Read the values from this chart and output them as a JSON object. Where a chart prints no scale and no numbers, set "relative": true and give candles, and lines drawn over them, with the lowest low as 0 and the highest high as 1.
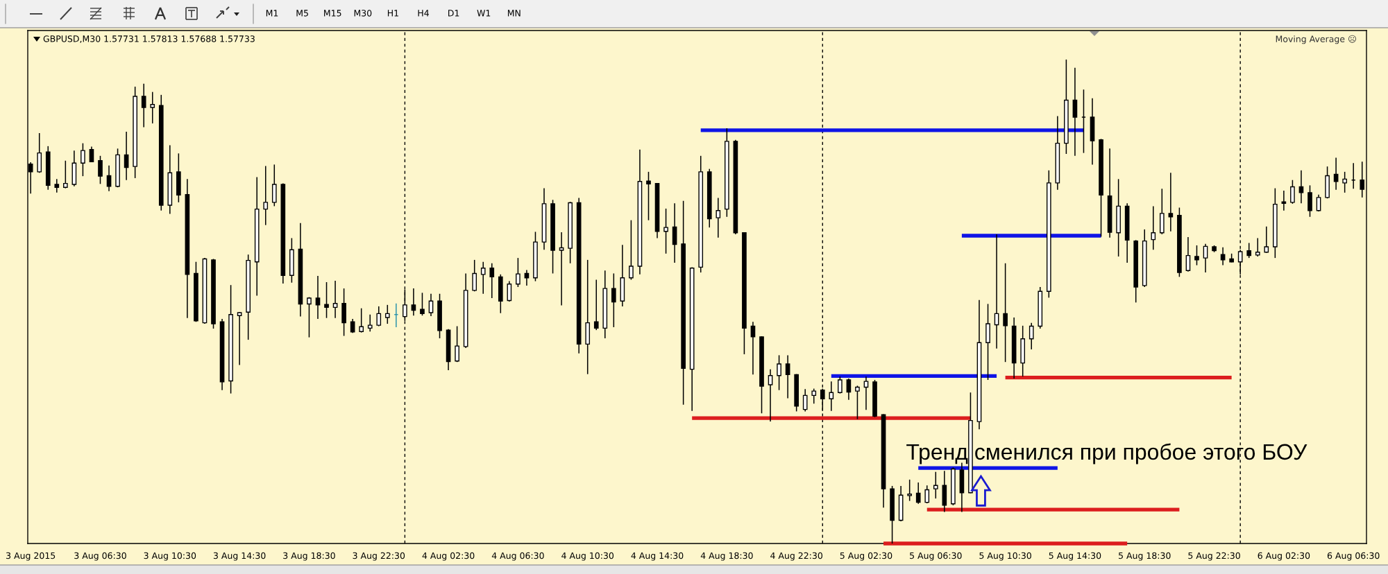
{
  "chart_data": {
    "type": "candlestick",
    "title": "GBPUSD,M30 1.57731 1.57813 1.57688 1.57733",
    "relative": true,
    "x": [
      "2015-08-03T02:30",
      "2015-08-03T03:00",
      "2015-08-03T03:30",
      "2015-08-03T04:00",
      "2015-08-03T04:30",
      "2015-08-03T05:00",
      "2015-08-03T05:30",
      "2015-08-03T06:00",
      "2015-08-03T06:30",
      "2015-08-03T07:00",
      "2015-08-03T07:30",
      "2015-08-03T08:00",
      "2015-08-03T08:30",
      "2015-08-03T09:00",
      "2015-08-03T09:30",
      "2015-08-03T10:00",
      "2015-08-03T10:30",
      "2015-08-03T11:00",
      "2015-08-03T11:30",
      "2015-08-03T12:00",
      "2015-08-03T12:30",
      "2015-08-03T13:00",
      "2015-08-03T13:30",
      "2015-08-03T14:00",
      "2015-08-03T14:30",
      "2015-08-03T15:00",
      "2015-08-03T15:30",
      "2015-08-03T16:00",
      "2015-08-03T16:30",
      "2015-08-03T17:00",
      "2015-08-03T17:30",
      "2015-08-03T18:00",
      "2015-08-03T18:30",
      "2015-08-03T19:00",
      "2015-08-03T19:30",
      "2015-08-03T20:00",
      "2015-08-03T20:30",
      "2015-08-03T21:00",
      "2015-08-03T21:30",
      "2015-08-03T22:00",
      "2015-08-03T22:30",
      "2015-08-03T23:00",
      "2015-08-03T23:30",
      "2015-08-04T00:00",
      "2015-08-04T00:30",
      "2015-08-04T01:00",
      "2015-08-04T01:30",
      "2015-08-04T02:00",
      "2015-08-04T02:30",
      "2015-08-04T03:00",
      "2015-08-04T03:30",
      "2015-08-04T04:00",
      "2015-08-04T04:30",
      "2015-08-04T05:00",
      "2015-08-04T05:30",
      "2015-08-04T06:00",
      "2015-08-04T06:30",
      "2015-08-04T07:00",
      "2015-08-04T07:30",
      "2015-08-04T08:00",
      "2015-08-04T08:30",
      "2015-08-04T09:00",
      "2015-08-04T09:30",
      "2015-08-04T10:00",
      "2015-08-04T10:30",
      "2015-08-04T11:00",
      "2015-08-04T11:30",
      "2015-08-04T12:00",
      "2015-08-04T12:30",
      "2015-08-04T13:00",
      "2015-08-04T13:30",
      "2015-08-04T14:00",
      "2015-08-04T14:30",
      "2015-08-04T15:00",
      "2015-08-04T15:30",
      "2015-08-04T16:00",
      "2015-08-04T16:30",
      "2015-08-04T17:00",
      "2015-08-04T17:30",
      "2015-08-04T18:00",
      "2015-08-04T18:30",
      "2015-08-04T19:00",
      "2015-08-04T19:30",
      "2015-08-04T20:00",
      "2015-08-04T20:30",
      "2015-08-04T21:00",
      "2015-08-04T21:30",
      "2015-08-04T22:00",
      "2015-08-04T22:30",
      "2015-08-04T23:00",
      "2015-08-04T23:30",
      "2015-08-05T00:00",
      "2015-08-05T00:30",
      "2015-08-05T01:00",
      "2015-08-05T01:30",
      "2015-08-05T02:00",
      "2015-08-05T02:30",
      "2015-08-05T03:00",
      "2015-08-05T03:30",
      "2015-08-05T04:00",
      "2015-08-05T04:30",
      "2015-08-05T05:00",
      "2015-08-05T05:30",
      "2015-08-05T06:00",
      "2015-08-05T06:30",
      "2015-08-05T07:00",
      "2015-08-05T07:30",
      "2015-08-05T08:00",
      "2015-08-05T08:30",
      "2015-08-05T09:00",
      "2015-08-05T09:30",
      "2015-08-05T10:00",
      "2015-08-05T10:30",
      "2015-08-05T11:00",
      "2015-08-05T11:30",
      "2015-08-05T12:00",
      "2015-08-05T12:30",
      "2015-08-05T13:00",
      "2015-08-05T13:30",
      "2015-08-05T14:00",
      "2015-08-05T14:30",
      "2015-08-05T15:00",
      "2015-08-05T15:30",
      "2015-08-05T16:00",
      "2015-08-05T16:30",
      "2015-08-05T17:00",
      "2015-08-05T17:30",
      "2015-08-05T18:00",
      "2015-08-05T18:30",
      "2015-08-05T19:00",
      "2015-08-05T19:30",
      "2015-08-05T20:00",
      "2015-08-05T20:30",
      "2015-08-05T21:00",
      "2015-08-05T21:30",
      "2015-08-05T22:00",
      "2015-08-05T22:30",
      "2015-08-05T23:00",
      "2015-08-05T23:30",
      "2015-08-06T00:00",
      "2015-08-06T00:30",
      "2015-08-06T01:00",
      "2015-08-06T01:30",
      "2015-08-06T02:00",
      "2015-08-06T02:30",
      "2015-08-06T03:00",
      "2015-08-06T03:30",
      "2015-08-06T04:00",
      "2015-08-06T04:30",
      "2015-08-06T05:00",
      "2015-08-06T05:30",
      "2015-08-06T06:00",
      "2015-08-06T06:30",
      "2015-08-06T07:00"
    ],
    "ohlc": [
      [
        0.784,
        0.788,
        0.723,
        0.768
      ],
      [
        0.768,
        0.848,
        0.766,
        0.807
      ],
      [
        0.809,
        0.821,
        0.731,
        0.74
      ],
      [
        0.742,
        0.753,
        0.725,
        0.736
      ],
      [
        0.736,
        0.791,
        0.734,
        0.744
      ],
      [
        0.742,
        0.812,
        0.738,
        0.786
      ],
      [
        0.786,
        0.827,
        0.759,
        0.812
      ],
      [
        0.814,
        0.82,
        0.788,
        0.789
      ],
      [
        0.791,
        0.801,
        0.743,
        0.759
      ],
      [
        0.76,
        0.781,
        0.728,
        0.738
      ],
      [
        0.738,
        0.816,
        0.736,
        0.803
      ],
      [
        0.803,
        0.851,
        0.751,
        0.777
      ],
      [
        0.779,
        0.944,
        0.755,
        0.924
      ],
      [
        0.924,
        0.95,
        0.86,
        0.901
      ],
      [
        0.901,
        0.933,
        0.868,
        0.907
      ],
      [
        0.905,
        0.927,
        0.688,
        0.699
      ],
      [
        0.699,
        0.823,
        0.681,
        0.766
      ],
      [
        0.768,
        0.806,
        0.705,
        0.72
      ],
      [
        0.721,
        0.753,
        0.466,
        0.556
      ],
      [
        0.558,
        0.582,
        0.458,
        0.46
      ],
      [
        0.456,
        0.59,
        0.454,
        0.588
      ],
      [
        0.586,
        0.588,
        0.444,
        0.454
      ],
      [
        0.458,
        0.464,
        0.317,
        0.334
      ],
      [
        0.336,
        0.534,
        0.31,
        0.473
      ],
      [
        0.471,
        0.478,
        0.369,
        0.477
      ],
      [
        0.478,
        0.597,
        0.421,
        0.585
      ],
      [
        0.582,
        0.757,
        0.512,
        0.691
      ],
      [
        0.691,
        0.78,
        0.658,
        0.705
      ],
      [
        0.705,
        0.783,
        0.697,
        0.742
      ],
      [
        0.742,
        0.744,
        0.537,
        0.554
      ],
      [
        0.554,
        0.631,
        0.539,
        0.607
      ],
      [
        0.608,
        0.662,
        0.469,
        0.495
      ],
      [
        0.495,
        0.509,
        0.426,
        0.507
      ],
      [
        0.507,
        0.553,
        0.464,
        0.493
      ],
      [
        0.494,
        0.54,
        0.466,
        0.488
      ],
      [
        0.488,
        0.543,
        0.466,
        0.496
      ],
      [
        0.496,
        0.527,
        0.429,
        0.456
      ],
      [
        0.458,
        0.464,
        0.435,
        0.437
      ],
      [
        0.438,
        0.486,
        0.436,
        0.448
      ],
      [
        0.445,
        0.473,
        0.438,
        0.451
      ],
      [
        0.451,
        0.49,
        0.449,
        0.475
      ],
      [
        0.467,
        0.493,
        0.454,
        0.475
      ],
      [
        0.473,
        0.496,
        0.447,
        0.473
      ],
      [
        0.469,
        0.525,
        0.46,
        0.493
      ],
      [
        0.493,
        0.527,
        0.471,
        0.482
      ],
      [
        0.484,
        0.518,
        0.471,
        0.475
      ],
      [
        0.477,
        0.516,
        0.47,
        0.501
      ],
      [
        0.501,
        0.516,
        0.424,
        0.44
      ],
      [
        0.441,
        0.443,
        0.358,
        0.376
      ],
      [
        0.377,
        0.449,
        0.375,
        0.408
      ],
      [
        0.407,
        0.558,
        0.404,
        0.523
      ],
      [
        0.523,
        0.586,
        0.521,
        0.558
      ],
      [
        0.556,
        0.582,
        0.516,
        0.569
      ],
      [
        0.569,
        0.579,
        0.507,
        0.551
      ],
      [
        0.551,
        0.556,
        0.476,
        0.501
      ],
      [
        0.502,
        0.542,
        0.5,
        0.536
      ],
      [
        0.536,
        0.59,
        0.53,
        0.557
      ],
      [
        0.558,
        0.565,
        0.533,
        0.549
      ],
      [
        0.549,
        0.644,
        0.542,
        0.623
      ],
      [
        0.623,
        0.734,
        0.607,
        0.702
      ],
      [
        0.702,
        0.71,
        0.558,
        0.606
      ],
      [
        0.606,
        0.643,
        0.492,
        0.611
      ],
      [
        0.61,
        0.706,
        0.579,
        0.704
      ],
      [
        0.704,
        0.714,
        0.393,
        0.412
      ],
      [
        0.412,
        0.586,
        0.35,
        0.456
      ],
      [
        0.458,
        0.545,
        0.441,
        0.445
      ],
      [
        0.445,
        0.564,
        0.424,
        0.527
      ],
      [
        0.527,
        0.558,
        0.447,
        0.499
      ],
      [
        0.501,
        0.617,
        0.49,
        0.549
      ],
      [
        0.549,
        0.668,
        0.545,
        0.573
      ],
      [
        0.573,
        0.814,
        0.556,
        0.748
      ],
      [
        0.749,
        0.768,
        0.668,
        0.743
      ],
      [
        0.744,
        0.745,
        0.631,
        0.645
      ],
      [
        0.645,
        0.692,
        0.599,
        0.653
      ],
      [
        0.654,
        0.703,
        0.58,
        0.618
      ],
      [
        0.619,
        0.708,
        0.287,
        0.362
      ],
      [
        0.36,
        0.571,
        0.274,
        0.569
      ],
      [
        0.571,
        0.801,
        0.56,
        0.768
      ],
      [
        0.768,
        0.774,
        0.653,
        0.671
      ],
      [
        0.673,
        0.714,
        0.632,
        0.688
      ],
      [
        0.691,
        0.858,
        0.675,
        0.831
      ],
      [
        0.831,
        0.834,
        0.639,
        0.642
      ],
      [
        0.642,
        0.643,
        0.391,
        0.445
      ],
      [
        0.449,
        0.458,
        0.349,
        0.427
      ],
      [
        0.427,
        0.428,
        0.269,
        0.325
      ],
      [
        0.328,
        0.36,
        0.252,
        0.347
      ],
      [
        0.347,
        0.389,
        0.317,
        0.371
      ],
      [
        0.371,
        0.389,
        0.3,
        0.349
      ],
      [
        0.349,
        0.35,
        0.273,
        0.284
      ],
      [
        0.277,
        0.319,
        0.273,
        0.306
      ],
      [
        0.306,
        0.32,
        0.289,
        0.315
      ],
      [
        0.317,
        0.32,
        0.274,
        0.299
      ],
      [
        0.299,
        0.335,
        0.274,
        0.312
      ],
      [
        0.312,
        0.345,
        0.31,
        0.338
      ],
      [
        0.338,
        0.341,
        0.297,
        0.313
      ],
      [
        0.315,
        0.326,
        0.257,
        0.323
      ],
      [
        0.323,
        0.345,
        0.276,
        0.335
      ],
      [
        0.334,
        0.338,
        0.261,
        0.263
      ],
      [
        0.266,
        0.267,
        0.074,
        0.113
      ],
      [
        0.113,
        0.119,
        0.0,
        0.048
      ],
      [
        0.048,
        0.119,
        0.046,
        0.1
      ],
      [
        0.099,
        0.132,
        0.088,
        0.102
      ],
      [
        0.104,
        0.126,
        0.082,
        0.085
      ],
      [
        0.085,
        0.12,
        0.083,
        0.111
      ],
      [
        0.113,
        0.148,
        0.093,
        0.12
      ],
      [
        0.12,
        0.15,
        0.065,
        0.079
      ],
      [
        0.082,
        0.157,
        0.079,
        0.154
      ],
      [
        0.152,
        0.167,
        0.065,
        0.105
      ],
      [
        0.105,
        0.312,
        0.104,
        0.254
      ],
      [
        0.252,
        0.503,
        0.236,
        0.415
      ],
      [
        0.415,
        0.495,
        0.338,
        0.454
      ],
      [
        0.452,
        0.639,
        0.403,
        0.475
      ],
      [
        0.475,
        0.579,
        0.375,
        0.45
      ],
      [
        0.449,
        0.467,
        0.341,
        0.373
      ],
      [
        0.373,
        0.45,
        0.345,
        0.423
      ],
      [
        0.423,
        0.456,
        0.401,
        0.449
      ],
      [
        0.449,
        0.53,
        0.444,
        0.521
      ],
      [
        0.521,
        0.771,
        0.508,
        0.745
      ],
      [
        0.745,
        0.883,
        0.731,
        0.827
      ],
      [
        0.827,
        1.0,
        0.805,
        0.916
      ],
      [
        0.916,
        0.983,
        0.801,
        0.881
      ],
      [
        0.881,
        0.938,
        0.807,
        0.881
      ],
      [
        0.881,
        0.92,
        0.783,
        0.832
      ],
      [
        0.834,
        0.836,
        0.634,
        0.72
      ],
      [
        0.718,
        0.816,
        0.632,
        0.643
      ],
      [
        0.642,
        0.753,
        0.593,
        0.697
      ],
      [
        0.697,
        0.703,
        0.58,
        0.627
      ],
      [
        0.625,
        0.627,
        0.498,
        0.53
      ],
      [
        0.533,
        0.649,
        0.53,
        0.625
      ],
      [
        0.628,
        0.697,
        0.607,
        0.642
      ],
      [
        0.642,
        0.733,
        0.639,
        0.682
      ],
      [
        0.682,
        0.766,
        0.645,
        0.675
      ],
      [
        0.678,
        0.694,
        0.551,
        0.56
      ],
      [
        0.564,
        0.633,
        0.562,
        0.595
      ],
      [
        0.593,
        0.616,
        0.575,
        0.586
      ],
      [
        0.59,
        0.619,
        0.56,
        0.614
      ],
      [
        0.613,
        0.616,
        0.602,
        0.605
      ],
      [
        0.597,
        0.612,
        0.575,
        0.586
      ],
      [
        0.588,
        0.599,
        0.581,
        0.582
      ],
      [
        0.582,
        0.607,
        0.556,
        0.603
      ],
      [
        0.605,
        0.621,
        0.59,
        0.595
      ],
      [
        0.596,
        0.631,
        0.593,
        0.602
      ],
      [
        0.602,
        0.655,
        0.601,
        0.613
      ],
      [
        0.613,
        0.734,
        0.59,
        0.701
      ],
      [
        0.706,
        0.729,
        0.688,
        0.703
      ],
      [
        0.705,
        0.751,
        0.702,
        0.737
      ],
      [
        0.737,
        0.771,
        0.703,
        0.725
      ],
      [
        0.725,
        0.74,
        0.675,
        0.688
      ],
      [
        0.688,
        0.721,
        0.686,
        0.715
      ],
      [
        0.715,
        0.779,
        0.713,
        0.76
      ],
      [
        0.763,
        0.797,
        0.731,
        0.748
      ],
      [
        0.745,
        0.768,
        0.725,
        0.753
      ],
      [
        0.751,
        0.786,
        0.733,
        0.751
      ],
      [
        0.751,
        0.789,
        0.715,
        0.732
      ]
    ],
    "colors": [
      "#000000",
      "#ffffff",
      "#000000",
      "#000000",
      "#ffffff",
      "#ffffff",
      "#ffffff",
      "#000000",
      "#000000",
      "#000000",
      "#ffffff",
      "#000000",
      "#ffffff",
      "#000000",
      "#ffffff",
      "#000000",
      "#ffffff",
      "#000000",
      "#000000",
      "#000000",
      "#ffffff",
      "#000000",
      "#000000",
      "#ffffff",
      "#ffffff",
      "#ffffff",
      "#ffffff",
      "#ffffff",
      "#ffffff",
      "#000000",
      "#ffffff",
      "#000000",
      "#ffffff",
      "#000000",
      "#000000",
      "#ffffff",
      "#000000",
      "#000000",
      "#ffffff",
      "#ffffff",
      "#ffffff",
      "#ffffff",
      "#2e94ab",
      "#ffffff",
      "#000000",
      "#000000",
      "#ffffff",
      "#000000",
      "#000000",
      "#ffffff",
      "#ffffff",
      "#ffffff",
      "#ffffff",
      "#000000",
      "#000000",
      "#ffffff",
      "#ffffff",
      "#000000",
      "#ffffff",
      "#ffffff",
      "#000000",
      "#ffffff",
      "#ffffff",
      "#000000",
      "#ffffff",
      "#000000",
      "#ffffff",
      "#000000",
      "#ffffff",
      "#ffffff",
      "#ffffff",
      "#000000",
      "#000000",
      "#ffffff",
      "#000000",
      "#000000",
      "#ffffff",
      "#ffffff",
      "#000000",
      "#ffffff",
      "#ffffff",
      "#000000",
      "#000000",
      "#000000",
      "#000000",
      "#ffffff",
      "#ffffff",
      "#000000",
      "#000000",
      "#ffffff",
      "#ffffff",
      "#000000",
      "#ffffff",
      "#ffffff",
      "#000000",
      "#ffffff",
      "#ffffff",
      "#000000",
      "#000000",
      "#000000",
      "#ffffff",
      "#ffffff",
      "#000000",
      "#ffffff",
      "#ffffff",
      "#000000",
      "#ffffff",
      "#000000",
      "#ffffff",
      "#ffffff",
      "#ffffff",
      "#ffffff",
      "#000000",
      "#000000",
      "#ffffff",
      "#ffffff",
      "#ffffff",
      "#ffffff",
      "#ffffff",
      "#ffffff",
      "#000000",
      "#000000",
      "#000000",
      "#000000",
      "#000000",
      "#ffffff",
      "#000000",
      "#000000",
      "#ffffff",
      "#ffffff",
      "#ffffff",
      "#000000",
      "#000000",
      "#ffffff",
      "#000000",
      "#ffffff",
      "#000000",
      "#000000",
      "#000000",
      "#ffffff",
      "#000000",
      "#ffffff",
      "#ffffff",
      "#ffffff",
      "#000000",
      "#ffffff",
      "#000000",
      "#000000",
      "#ffffff",
      "#ffffff",
      "#000000",
      "#ffffff",
      "#000000",
      "#000000"
    ],
    "series": [
      {
        "type": "line",
        "x": [
          "2015-08-04T17:00",
          "2015-08-05T15:00"
        ],
        "values": [
          0.854,
          0.854
        ],
        "color": "#0f14e6"
      },
      {
        "type": "line",
        "x": [
          "2015-08-05T08:00",
          "2015-08-05T16:00"
        ],
        "values": [
          0.636,
          0.636
        ],
        "color": "#0f14e6"
      },
      {
        "type": "line",
        "x": [
          "2015-08-05T00:30",
          "2015-08-05T10:00"
        ],
        "values": [
          0.346,
          0.346
        ],
        "color": "#0f14e6"
      },
      {
        "type": "line",
        "x": [
          "2015-08-05T05:30",
          "2015-08-05T13:30"
        ],
        "values": [
          0.156,
          0.156
        ],
        "color": "#0f14e6"
      },
      {
        "type": "line",
        "x": [
          "2015-08-04T16:30",
          "2015-08-05T08:30"
        ],
        "values": [
          0.259,
          0.259
        ],
        "color": "#dc1e1e"
      },
      {
        "type": "line",
        "x": [
          "2015-08-05T10:30",
          "2015-08-05T23:30"
        ],
        "values": [
          0.343,
          0.343
        ],
        "color": "#dc1e1e"
      },
      {
        "type": "line",
        "x": [
          "2015-08-05T06:00",
          "2015-08-05T20:30"
        ],
        "values": [
          0.07,
          0.07
        ],
        "color": "#dc1e1e"
      },
      {
        "type": "line",
        "x": [
          "2015-08-05T03:30",
          "2015-08-05T17:30"
        ],
        "values": [
          0.0,
          0.0
        ],
        "color": "#dc1e1e"
      }
    ],
    "xlim": [
      "2015-08-03T02:20",
      "2015-08-06T07:15"
    ],
    "xticks": [
      {
        "value": "2015-08-03T02:30",
        "label": "3 Aug 2015"
      },
      {
        "value": "2015-08-03T06:30",
        "label": "3 Aug 06:30"
      },
      {
        "value": "2015-08-03T10:30",
        "label": "3 Aug 10:30"
      },
      {
        "value": "2015-08-03T14:30",
        "label": "3 Aug 14:30"
      },
      {
        "value": "2015-08-03T18:30",
        "label": "3 Aug 18:30"
      },
      {
        "value": "2015-08-03T22:30",
        "label": "3 Aug 22:30"
      },
      {
        "value": "2015-08-04T02:30",
        "label": "4 Aug 02:30"
      },
      {
        "value": "2015-08-04T06:30",
        "label": "4 Aug 06:30"
      },
      {
        "value": "2015-08-04T10:30",
        "label": "4 Aug 10:30"
      },
      {
        "value": "2015-08-04T14:30",
        "label": "4 Aug 14:30"
      },
      {
        "value": "2015-08-04T18:30",
        "label": "4 Aug 18:30"
      },
      {
        "value": "2015-08-04T22:30",
        "label": "4 Aug 22:30"
      },
      {
        "value": "2015-08-05T02:30",
        "label": "5 Aug 02:30"
      },
      {
        "value": "2015-08-05T06:30",
        "label": "5 Aug 06:30"
      },
      {
        "value": "2015-08-05T10:30",
        "label": "5 Aug 10:30"
      },
      {
        "value": "2015-08-05T14:30",
        "label": "5 Aug 14:30"
      },
      {
        "value": "2015-08-05T18:30",
        "label": "5 Aug 18:30"
      },
      {
        "value": "2015-08-05T22:30",
        "label": "5 Aug 22:30"
      },
      {
        "value": "2015-08-06T02:30",
        "label": "6 Aug 02:30"
      },
      {
        "value": "2015-08-06T06:30",
        "label": "6 Aug 06:30"
      }
    ],
    "ref_lines": [
      {
        "axis": "x",
        "value": "2015-08-04T00:00",
        "color": "#000000",
        "line_style": "dashed"
      },
      {
        "axis": "x",
        "value": "2015-08-05T00:00",
        "color": "#000000",
        "line_style": "dashed"
      },
      {
        "axis": "x",
        "value": "2015-08-06T00:00",
        "color": "#000000",
        "line_style": "dashed"
      }
    ],
    "annotations": [
      "Moving Average ☹",
      "Тренд сменился при пробое этого БОУ",
      "M1",
      "M5",
      "M15",
      "M30",
      "H1",
      "H4",
      "D1",
      "W1",
      "MN"
    ]
  }
}
